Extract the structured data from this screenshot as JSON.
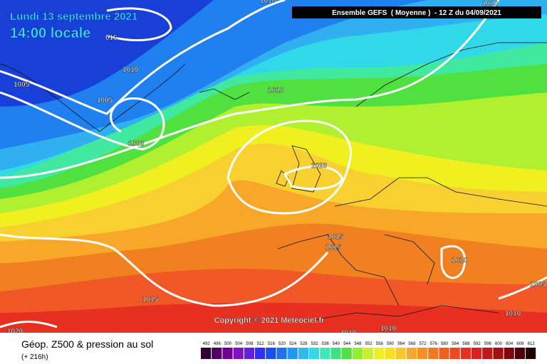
{
  "header": {
    "date": "Lundi 13 septembre 2021",
    "time": "14:00 locale",
    "model": "Ensemble GEFS  ( Moyenne )  - 12 Z du 04/09/2021"
  },
  "isobar_labels": [
    "1010",
    "1010",
    "015",
    "1010",
    "1005",
    "1005",
    "1010",
    "1000",
    "1020",
    "1015",
    "1015",
    "1010",
    "1005",
    "1015",
    "1010",
    "1020",
    "1010",
    "1010"
  ],
  "copyright": "Copyright © 2021 Meteociel.fr",
  "footer": {
    "title": "Géop. Z500 & pression au sol",
    "lead": "(+ 216h)"
  },
  "legend": {
    "values": [
      492,
      496,
      500,
      504,
      508,
      512,
      516,
      520,
      524,
      528,
      532,
      536,
      540,
      544,
      548,
      552,
      556,
      560,
      564,
      568,
      572,
      576,
      580,
      584,
      588,
      592,
      596,
      600,
      604,
      608,
      612
    ],
    "colors": [
      "#300030",
      "#500060",
      "#700090",
      "#8010c0",
      "#6020e0",
      "#3030f0",
      "#1850f0",
      "#2070f0",
      "#2098f0",
      "#30b8f0",
      "#30d8e8",
      "#40e8b8",
      "#40e080",
      "#50e040",
      "#90f030",
      "#c8f030",
      "#f0f020",
      "#f8e020",
      "#f8c828",
      "#f8a828",
      "#f89020",
      "#f07820",
      "#f06020",
      "#f04820",
      "#e83020",
      "#d82020",
      "#c01818",
      "#a01010",
      "#800810",
      "#500008",
      "#200000"
    ]
  }
}
